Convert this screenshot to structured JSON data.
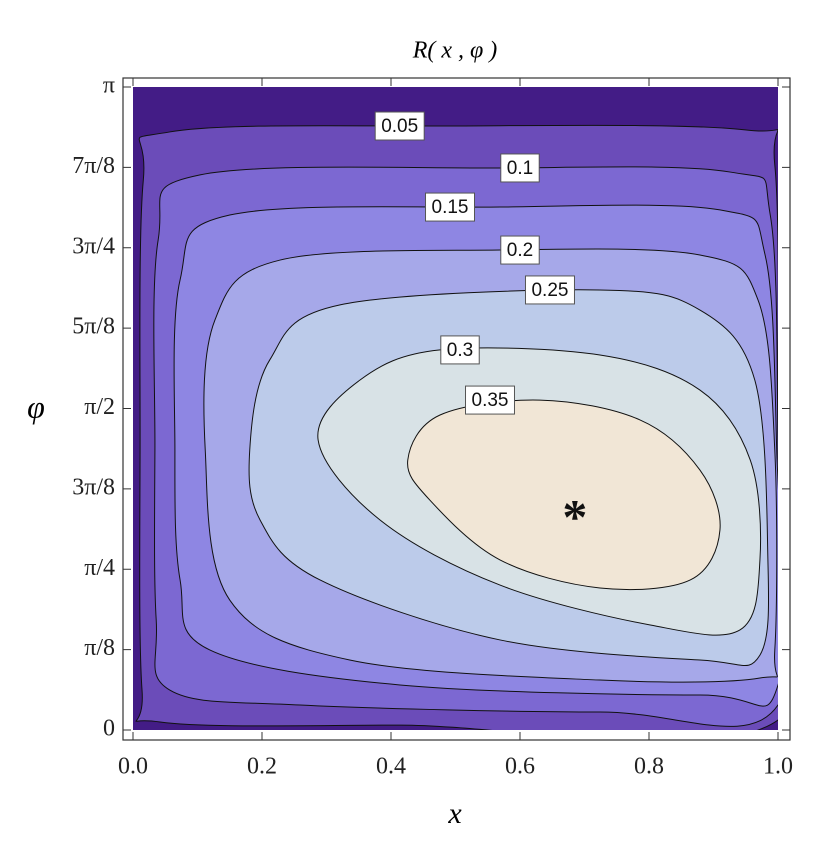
{
  "chart_data": {
    "type": "contour",
    "title": "R( x , φ )",
    "xlabel": "x",
    "ylabel": "φ",
    "xlim": [
      0,
      1
    ],
    "ylim": [
      0,
      3.141592653589793
    ],
    "xticks": [
      {
        "value": 0,
        "label": "0.0"
      },
      0.2,
      0.4,
      0.6,
      0.8,
      {
        "value": 1,
        "label": "1.0"
      }
    ],
    "yticks": [
      0,
      {
        "value": 0.39269908169872414,
        "label": "π/8"
      },
      {
        "value": 0.7853981633974483,
        "label": "π/4"
      },
      {
        "value": 1.1780972450961724,
        "label": "3π/8"
      },
      {
        "value": 1.5707963267948966,
        "label": "π/2"
      },
      {
        "value": 1.9634954084936207,
        "label": "5π/8"
      },
      {
        "value": 2.356194490192345,
        "label": "3π/4"
      },
      {
        "value": 2.748893571891069,
        "label": "7π/8"
      },
      {
        "value": 3.141592653589793,
        "label": "π"
      }
    ],
    "background": "#431c86",
    "contours": [
      {
        "level": 0.05,
        "color": "#6b4cb9",
        "x": [
          0.011,
          0.016,
          0.057,
          0.491,
          0.949,
          0.995,
          1.0,
          1.0,
          0.414,
          0.042,
          0.014
        ],
        "y": [
          1.368,
          2.687,
          2.922,
          2.951,
          2.932,
          2.761,
          1.368,
          0.049,
          0.024,
          0.039,
          0.195
        ]
      },
      {
        "level": 0.1,
        "color": "#7c68d2",
        "x": [
          0.034,
          0.039,
          0.104,
          0.569,
          0.926,
          0.988,
          1.0,
          1.0,
          0.724,
          0.259,
          0.057,
          0.036
        ],
        "y": [
          1.368,
          2.394,
          2.712,
          2.746,
          2.726,
          2.516,
          1.368,
          0.122,
          0.088,
          0.122,
          0.195,
          0.537
        ]
      },
      {
        "level": 0.15,
        "color": "#8e86e3",
        "x": [
          0.065,
          0.073,
          0.15,
          0.569,
          0.91,
          0.98,
          0.998,
          1.0,
          0.879,
          0.414,
          0.119,
          0.073
        ],
        "y": [
          1.368,
          2.199,
          2.516,
          2.555,
          2.541,
          2.321,
          1.368,
          0.22,
          0.171,
          0.22,
          0.391,
          0.733
        ]
      },
      {
        "level": 0.2,
        "color": "#a6a8e9",
        "x": [
          0.112,
          0.127,
          0.228,
          0.569,
          0.879,
          0.969,
          0.995,
          0.995,
          0.972,
          0.724,
          0.336,
          0.15
        ],
        "y": [
          1.368,
          2.003,
          2.296,
          2.345,
          2.321,
          2.101,
          1.368,
          0.391,
          0.254,
          0.244,
          0.342,
          0.635
        ]
      },
      {
        "level": 0.25,
        "color": "#bccbea",
        "x": [
          0.181,
          0.212,
          0.321,
          0.724,
          0.879,
          0.964,
          0.984,
          0.972,
          0.879,
          0.569,
          0.29,
          0.197
        ],
        "y": [
          1.368,
          1.808,
          2.077,
          2.15,
          2.052,
          1.71,
          0.88,
          0.366,
          0.342,
          0.44,
          0.733,
          1.026
        ]
      },
      {
        "level": 0.3,
        "color": "#d8e2e6",
        "x": [
          0.287,
          0.352,
          0.476,
          0.724,
          0.879,
          0.957,
          0.972,
          0.941,
          0.802,
          0.569,
          0.383
        ],
        "y": [
          1.417,
          1.71,
          1.857,
          1.832,
          1.661,
          1.319,
          0.831,
          0.489,
          0.513,
          0.708,
          1.026
        ]
      },
      {
        "level": 0.35,
        "color": "#f1e6d6",
        "x": [
          0.426,
          0.476,
          0.631,
          0.786,
          0.879,
          0.91,
          0.864,
          0.724,
          0.569,
          0.46
        ],
        "y": [
          1.319,
          1.539,
          1.612,
          1.515,
          1.27,
          0.977,
          0.733,
          0.694,
          0.831,
          1.124
        ]
      }
    ],
    "annotation": {
      "text": "*",
      "x": 0.685,
      "y": 1.075
    }
  }
}
